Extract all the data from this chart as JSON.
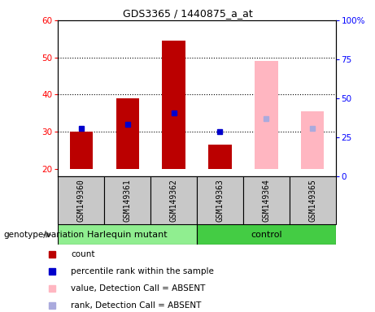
{
  "title": "GDS3365 / 1440875_a_at",
  "samples": [
    "GSM149360",
    "GSM149361",
    "GSM149362",
    "GSM149363",
    "GSM149364",
    "GSM149365"
  ],
  "ylim_left": [
    18,
    60
  ],
  "ylim_right": [
    0,
    100
  ],
  "yticks_left": [
    20,
    30,
    40,
    50,
    60
  ],
  "yticks_right": [
    0,
    25,
    50,
    75,
    100
  ],
  "count_values": [
    30.0,
    39.0,
    54.5,
    26.5,
    null,
    null
  ],
  "percentile_values": [
    31.0,
    32.0,
    35.0,
    30.0,
    null,
    null
  ],
  "absent_value_values": [
    null,
    null,
    null,
    null,
    49.0,
    35.5
  ],
  "absent_rank_values": [
    null,
    null,
    null,
    null,
    33.5,
    31.0
  ],
  "bar_width": 0.5,
  "count_color": "#BB0000",
  "percentile_color": "#0000CC",
  "absent_value_color": "#FFB6C1",
  "absent_rank_color": "#AAAADD",
  "bar_bottom": 20,
  "dotted_gridlines": [
    30,
    40,
    50
  ],
  "harlequin_color": "#90EE90",
  "control_color": "#44CC44",
  "sample_box_color": "#C8C8C8",
  "legend_items": [
    {
      "label": "count",
      "color": "#BB0000"
    },
    {
      "label": "percentile rank within the sample",
      "color": "#0000CC"
    },
    {
      "label": "value, Detection Call = ABSENT",
      "color": "#FFB6C1"
    },
    {
      "label": "rank, Detection Call = ABSENT",
      "color": "#AAAADD"
    }
  ]
}
